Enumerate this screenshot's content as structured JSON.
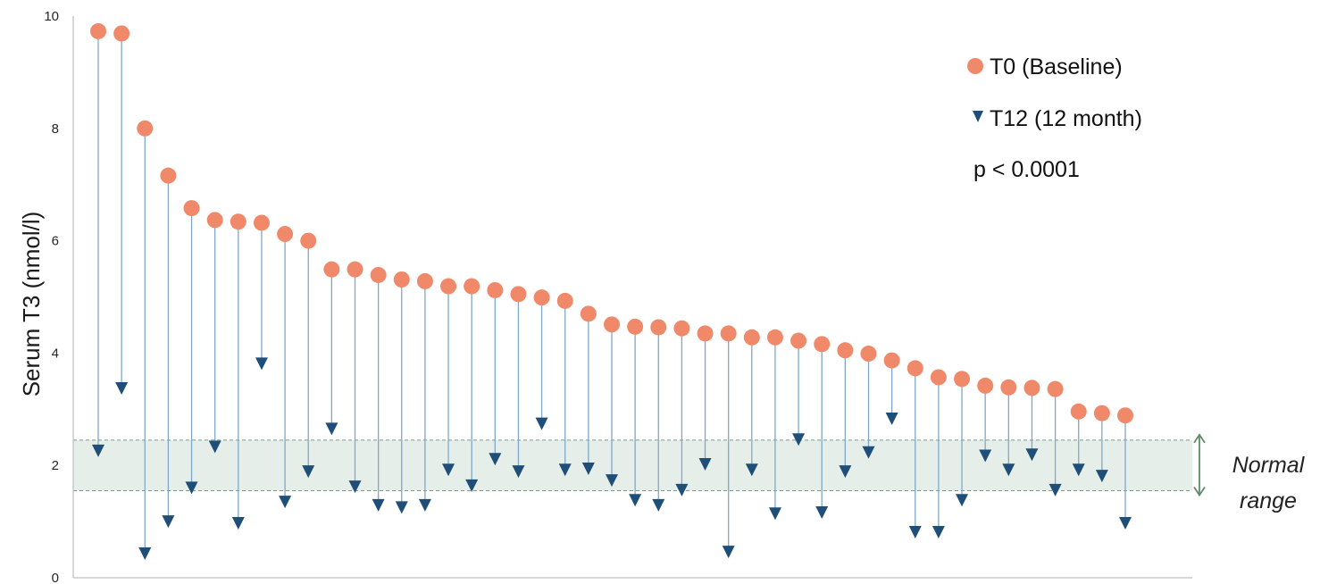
{
  "chart_data": {
    "type": "scatter",
    "title": "",
    "ylabel": "Serum T3 (nmol/l)",
    "xlabel": "",
    "ylim": [
      0,
      10
    ],
    "yticks": [
      "0",
      "2",
      "4",
      "6",
      "8",
      "10"
    ],
    "grid": false,
    "legend_position": "top-right",
    "normal_range": [
      1.55,
      2.45
    ],
    "normal_range_label_line1": "Normal",
    "normal_range_label_line2": "range",
    "annotation": "p < 0.0001",
    "colors": {
      "t0": "#F0896A",
      "t12": "#1F4E79",
      "connector": "#7FA8C8",
      "band": "#E6EEEA",
      "band_line": "#7F9A8B",
      "range_arrow": "#5E8C6A"
    },
    "series": [
      {
        "name": "T0 (Baseline)",
        "marker": "circle",
        "values": [
          9.73,
          9.69,
          8.0,
          7.16,
          6.58,
          6.37,
          6.34,
          6.32,
          6.12,
          6.0,
          5.49,
          5.49,
          5.39,
          5.31,
          5.28,
          5.19,
          5.19,
          5.12,
          5.05,
          4.99,
          4.93,
          4.7,
          4.51,
          4.47,
          4.46,
          4.44,
          4.35,
          4.35,
          4.28,
          4.28,
          4.22,
          4.16,
          4.05,
          3.99,
          3.87,
          3.73,
          3.57,
          3.54,
          3.42,
          3.39,
          3.38,
          3.36,
          2.96,
          2.93,
          2.89
        ]
      },
      {
        "name": "T12 (12 month)",
        "marker": "triangle-down",
        "values": [
          2.26,
          3.37,
          0.43,
          1.0,
          1.6,
          2.33,
          0.97,
          3.81,
          1.35,
          1.89,
          2.65,
          1.62,
          1.29,
          1.25,
          1.29,
          1.92,
          1.64,
          2.11,
          1.89,
          2.74,
          1.92,
          1.94,
          1.73,
          1.38,
          1.29,
          1.56,
          2.02,
          0.46,
          1.92,
          1.14,
          2.46,
          1.16,
          1.89,
          2.23,
          2.83,
          0.81,
          0.81,
          1.38,
          2.17,
          1.92,
          2.19,
          1.56,
          1.92,
          1.81,
          0.97
        ]
      }
    ]
  }
}
